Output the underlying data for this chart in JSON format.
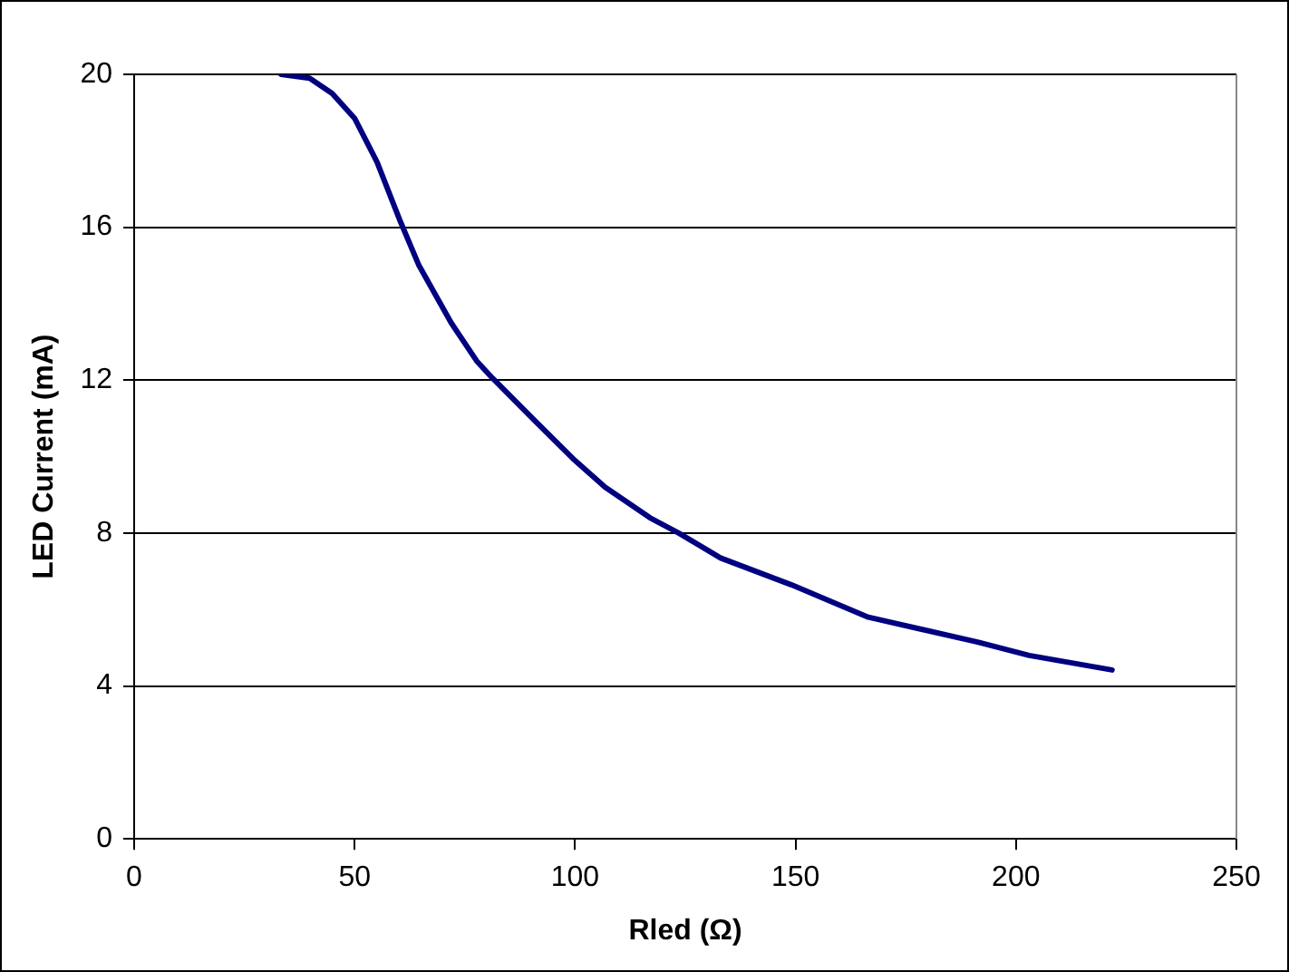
{
  "chart_data": {
    "type": "line",
    "xlabel": "Rled (Ω)",
    "ylabel": "LED Current (mA)",
    "x": [
      33.3,
      39.8,
      44.9,
      50,
      55.1,
      60.2,
      64.6,
      71.9,
      77.7,
      81.3,
      90.8,
      99.5,
      106.8,
      117,
      123.5,
      133,
      149,
      166.5,
      191.3,
      203,
      221.8
    ],
    "series": [
      {
        "color": "#000080",
        "values": [
          20,
          19.9,
          19.5,
          18.85,
          17.7,
          16.2,
          15,
          13.5,
          12.5,
          12.05,
          10.95,
          9.95,
          9.2,
          8.4,
          8,
          7.35,
          6.65,
          5.8,
          5.15,
          4.8,
          4.42
        ]
      }
    ],
    "xlim": [
      0,
      250
    ],
    "xticks": [
      0,
      50,
      100,
      150,
      200,
      250
    ],
    "ylim": [
      0,
      20
    ],
    "yticks": [
      0,
      4,
      8,
      12,
      16,
      20
    ],
    "grid": "y",
    "legend": false,
    "marker": "none",
    "line_style": "solid"
  }
}
